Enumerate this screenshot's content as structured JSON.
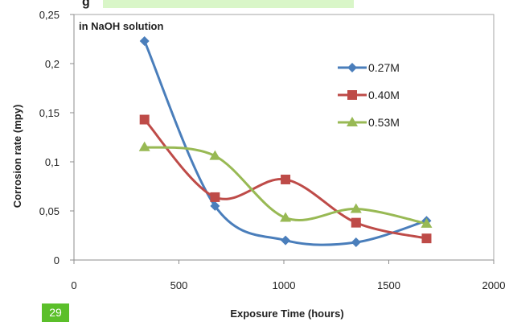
{
  "page_badge": "29",
  "top_fragment": "g",
  "chart_data": {
    "type": "line",
    "smoothed": true,
    "title": "",
    "annotation": "in NaOH solution",
    "xlabel": "Exposure Time (hours)",
    "ylabel": "Corrosion rate (mpy)",
    "xlim": [
      0,
      2000
    ],
    "ylim": [
      0,
      0.25
    ],
    "x_ticks": [
      {
        "value": 0,
        "label": "0"
      },
      {
        "value": 500,
        "label": "500"
      },
      {
        "value": 1000,
        "label": "1000"
      },
      {
        "value": 1500,
        "label": "1500"
      },
      {
        "value": 2000,
        "label": "2000"
      }
    ],
    "y_ticks": [
      {
        "value": 0,
        "label": "0"
      },
      {
        "value": 0.05,
        "label": "0,05"
      },
      {
        "value": 0.1,
        "label": "0,1"
      },
      {
        "value": 0.15,
        "label": "0,15"
      },
      {
        "value": 0.2,
        "label": "0,2"
      },
      {
        "value": 0.25,
        "label": "0,25"
      }
    ],
    "grid": false,
    "legend_position": "top-right",
    "series": [
      {
        "name": "0.27M",
        "color": "#4a7ebb",
        "marker": "diamond",
        "x": [
          336,
          672,
          1008,
          1344,
          1680
        ],
        "y": [
          0.223,
          0.055,
          0.02,
          0.018,
          0.04
        ]
      },
      {
        "name": "0.40M",
        "color": "#be4b48",
        "marker": "square",
        "x": [
          336,
          672,
          1008,
          1344,
          1680
        ],
        "y": [
          0.143,
          0.064,
          0.082,
          0.038,
          0.022
        ]
      },
      {
        "name": "0.53M",
        "color": "#98b954",
        "marker": "triangle",
        "x": [
          336,
          672,
          1008,
          1344,
          1680
        ],
        "y": [
          0.115,
          0.106,
          0.043,
          0.052,
          0.037
        ]
      }
    ]
  }
}
